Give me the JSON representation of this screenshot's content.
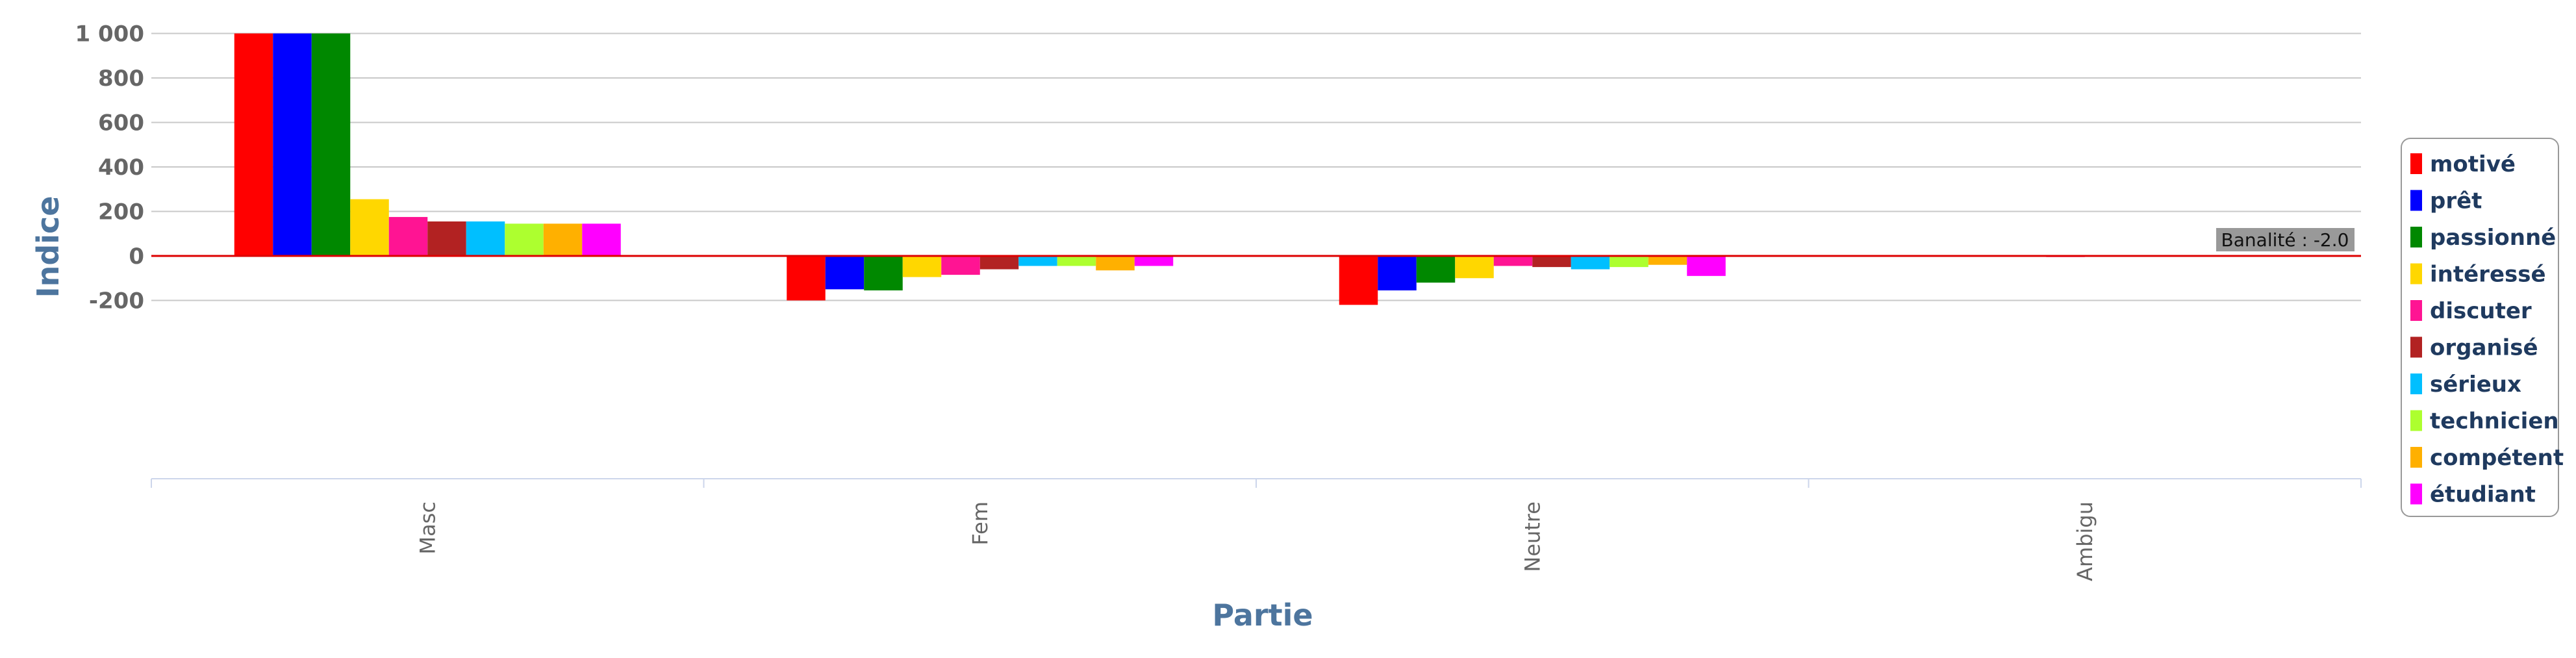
{
  "chart_data": {
    "type": "bar",
    "title": "",
    "xlabel": "Partie",
    "ylabel": "Indice",
    "ylim": [
      -200,
      1000
    ],
    "yticks": [
      1000,
      800,
      600,
      400,
      200,
      0,
      -200
    ],
    "ytick_labels": [
      "1 000",
      "800",
      "600",
      "400",
      "200",
      "0",
      "-200"
    ],
    "grid": true,
    "legend_position": "right",
    "categories": [
      "Masc",
      "Fem",
      "Neutre",
      "Ambigu"
    ],
    "series": [
      {
        "name": "motivé",
        "color": "#ff0000",
        "values": [
          1000,
          -200,
          -220,
          0
        ]
      },
      {
        "name": "prêt",
        "color": "#0000ff",
        "values": [
          1000,
          -150,
          -155,
          0
        ]
      },
      {
        "name": "passionné",
        "color": "#008800",
        "values": [
          1000,
          -155,
          -120,
          0
        ]
      },
      {
        "name": "intéressé",
        "color": "#ffd700",
        "values": [
          255,
          -95,
          -100,
          0
        ]
      },
      {
        "name": "discuter",
        "color": "#ff1493",
        "values": [
          175,
          -85,
          -45,
          -5
        ]
      },
      {
        "name": "organisé",
        "color": "#b22222",
        "values": [
          155,
          -60,
          -50,
          0
        ]
      },
      {
        "name": "sérieux",
        "color": "#00bfff",
        "values": [
          155,
          -45,
          -60,
          0
        ]
      },
      {
        "name": "technicien",
        "color": "#adff2f",
        "values": [
          145,
          -45,
          -50,
          0
        ]
      },
      {
        "name": "compétent",
        "color": "#ffb000",
        "values": [
          145,
          -65,
          -40,
          0
        ]
      },
      {
        "name": "étudiant",
        "color": "#ff00ff",
        "values": [
          145,
          -45,
          -90,
          0
        ]
      }
    ],
    "reference_line": {
      "value": 0,
      "color": "#dd0000"
    },
    "flag": {
      "text": "Banalité : -2.0",
      "color": "#999999"
    }
  }
}
